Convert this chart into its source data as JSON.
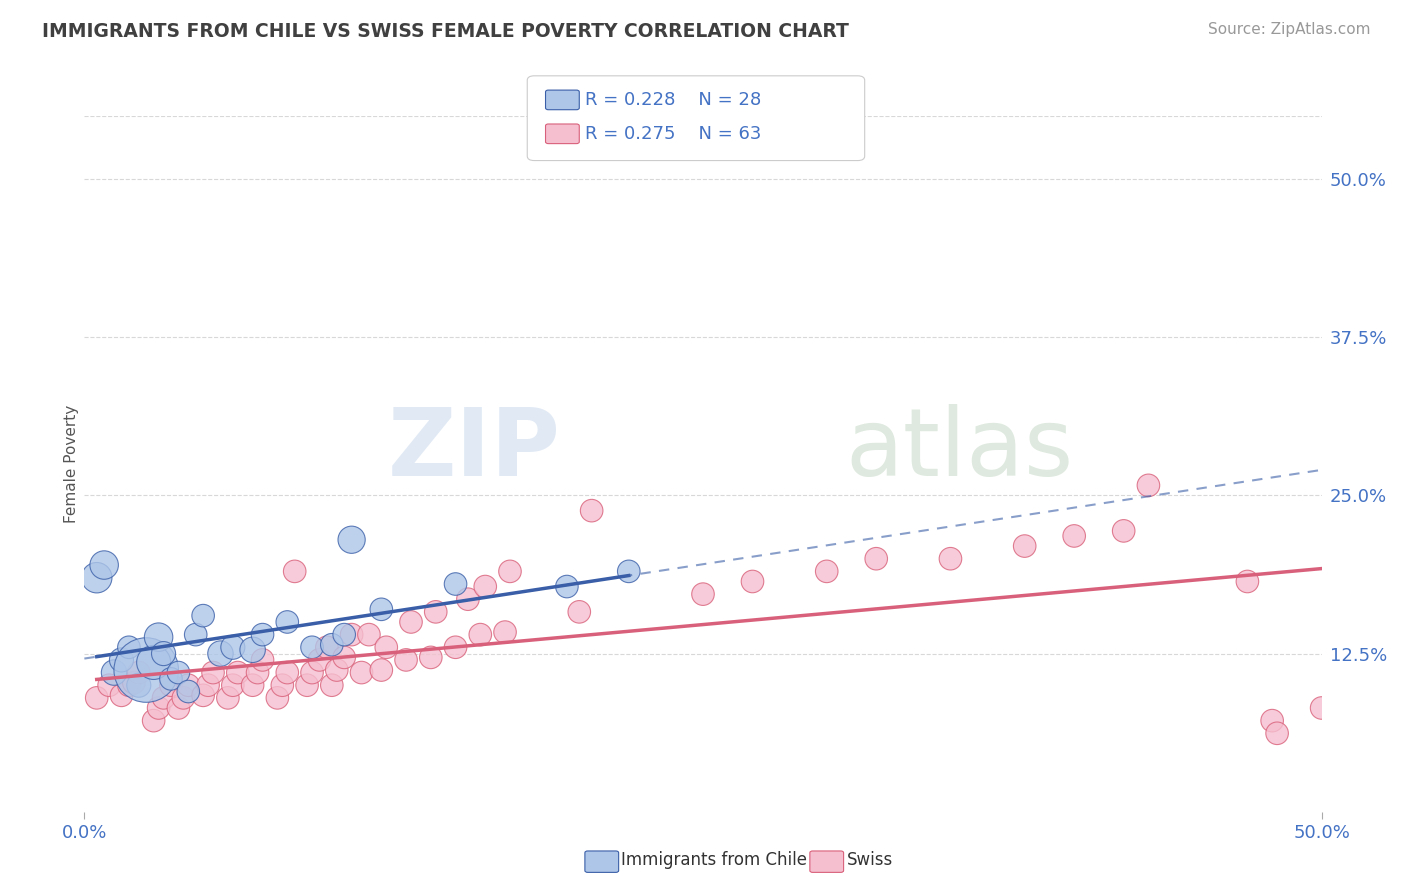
{
  "title": "IMMIGRANTS FROM CHILE VS SWISS FEMALE POVERTY CORRELATION CHART",
  "source": "Source: ZipAtlas.com",
  "ylabel": "Female Poverty",
  "xlim": [
    0.0,
    0.5
  ],
  "ylim": [
    0.0,
    0.55
  ],
  "xtick_labels": [
    "0.0%",
    "50.0%"
  ],
  "xtick_positions": [
    0.0,
    0.5
  ],
  "ytick_labels": [
    "12.5%",
    "25.0%",
    "37.5%",
    "50.0%"
  ],
  "ytick_positions": [
    0.125,
    0.25,
    0.375,
    0.5
  ],
  "blue_color": "#aec6e8",
  "pink_color": "#f5bfd0",
  "blue_line_color": "#3a5fa8",
  "pink_line_color": "#d9607a",
  "legend_text_color": "#4472c4",
  "title_color": "#404040",
  "R_blue": 0.228,
  "N_blue": 28,
  "R_pink": 0.275,
  "N_pink": 63,
  "blue_scatter_x": [
    0.005,
    0.008,
    0.012,
    0.015,
    0.018,
    0.022,
    0.025,
    0.028,
    0.03,
    0.032,
    0.035,
    0.038,
    0.042,
    0.045,
    0.048,
    0.055,
    0.06,
    0.068,
    0.072,
    0.082,
    0.092,
    0.1,
    0.105,
    0.108,
    0.12,
    0.15,
    0.195,
    0.22
  ],
  "blue_scatter_y": [
    0.185,
    0.195,
    0.11,
    0.12,
    0.13,
    0.1,
    0.112,
    0.118,
    0.138,
    0.125,
    0.105,
    0.11,
    0.095,
    0.14,
    0.155,
    0.125,
    0.13,
    0.128,
    0.14,
    0.15,
    0.13,
    0.132,
    0.14,
    0.215,
    0.16,
    0.18,
    0.178,
    0.19
  ],
  "blue_marker_sizes": [
    40,
    35,
    28,
    25,
    22,
    25,
    180,
    50,
    35,
    25,
    22,
    22,
    22,
    22,
    22,
    28,
    25,
    28,
    22,
    22,
    22,
    22,
    22,
    32,
    22,
    22,
    22,
    22
  ],
  "pink_scatter_x": [
    0.005,
    0.01,
    0.015,
    0.018,
    0.02,
    0.022,
    0.028,
    0.03,
    0.032,
    0.035,
    0.038,
    0.04,
    0.042,
    0.048,
    0.05,
    0.052,
    0.058,
    0.06,
    0.062,
    0.068,
    0.07,
    0.072,
    0.078,
    0.08,
    0.082,
    0.085,
    0.09,
    0.092,
    0.095,
    0.098,
    0.1,
    0.102,
    0.105,
    0.108,
    0.112,
    0.115,
    0.12,
    0.122,
    0.13,
    0.132,
    0.14,
    0.142,
    0.15,
    0.155,
    0.16,
    0.162,
    0.17,
    0.172,
    0.2,
    0.205,
    0.25,
    0.27,
    0.3,
    0.32,
    0.35,
    0.38,
    0.4,
    0.42,
    0.43,
    0.47,
    0.48,
    0.482,
    0.5
  ],
  "pink_scatter_y": [
    0.09,
    0.1,
    0.092,
    0.1,
    0.102,
    0.11,
    0.072,
    0.082,
    0.09,
    0.1,
    0.082,
    0.09,
    0.1,
    0.092,
    0.1,
    0.11,
    0.09,
    0.1,
    0.11,
    0.1,
    0.11,
    0.12,
    0.09,
    0.1,
    0.11,
    0.19,
    0.1,
    0.11,
    0.12,
    0.13,
    0.1,
    0.112,
    0.122,
    0.14,
    0.11,
    0.14,
    0.112,
    0.13,
    0.12,
    0.15,
    0.122,
    0.158,
    0.13,
    0.168,
    0.14,
    0.178,
    0.142,
    0.19,
    0.158,
    0.238,
    0.172,
    0.182,
    0.19,
    0.2,
    0.2,
    0.21,
    0.218,
    0.222,
    0.258,
    0.182,
    0.072,
    0.062,
    0.082
  ],
  "pink_marker_sizes": [
    22,
    22,
    22,
    22,
    22,
    22,
    22,
    22,
    22,
    22,
    22,
    22,
    22,
    22,
    22,
    22,
    22,
    22,
    22,
    22,
    22,
    22,
    22,
    22,
    22,
    22,
    22,
    22,
    22,
    22,
    22,
    22,
    22,
    22,
    22,
    22,
    22,
    22,
    22,
    22,
    22,
    22,
    22,
    22,
    22,
    22,
    22,
    22,
    22,
    22,
    22,
    22,
    22,
    22,
    22,
    22,
    22,
    22,
    22,
    22,
    22,
    22,
    22
  ],
  "background_color": "#ffffff",
  "grid_color": "#d8d8d8",
  "watermark_part1": "ZIP",
  "watermark_part2": "atlas"
}
